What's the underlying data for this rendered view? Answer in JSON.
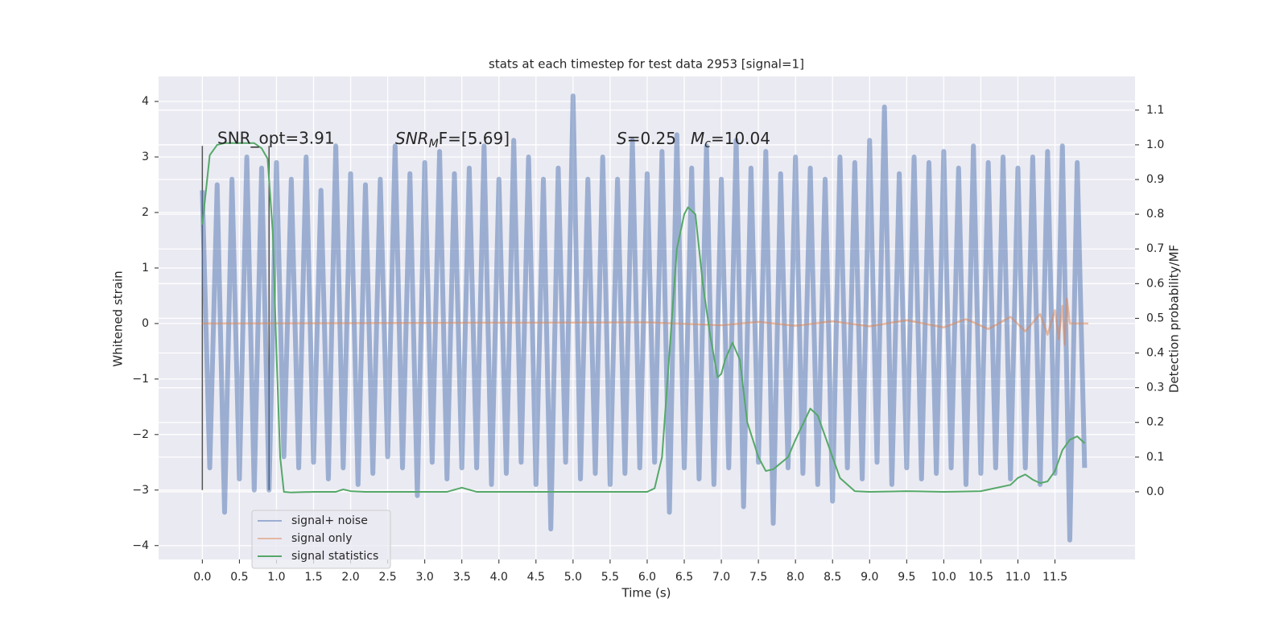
{
  "chart_data": {
    "type": "line",
    "title": "stats at each timestep for test data 2953 [signal=1]",
    "xlabel": "Time (s)",
    "ylabel": "Whitened strain",
    "y2label": "Detection probability/MF",
    "annotations": {
      "snr_opt": "SNR_opt=3.91",
      "snr_mf": {
        "base": "SNR",
        "sub": "M",
        "rest": "F=[5.69]"
      },
      "s": {
        "base": "S",
        "rest": "=0.25"
      },
      "mc": {
        "base": "M",
        "sub": "c",
        "rest": "=10.04"
      }
    },
    "xlim": [
      -0.59,
      12.58
    ],
    "ylim": [
      -4.25,
      4.45
    ],
    "y2lim": [
      -0.195,
      1.197
    ],
    "xticks": [
      {
        "value": 0,
        "label": "0.0"
      },
      0.5,
      {
        "value": 1,
        "label": "1.0"
      },
      1.5,
      {
        "value": 2,
        "label": "2.0"
      },
      2.5,
      {
        "value": 3,
        "label": "3.0"
      },
      3.5,
      {
        "value": 4,
        "label": "4.0"
      },
      4.5,
      {
        "value": 5,
        "label": "5.0"
      },
      5.5,
      {
        "value": 6,
        "label": "6.0"
      },
      6.5,
      {
        "value": 7,
        "label": "7.0"
      },
      7.5,
      {
        "value": 8,
        "label": "8.0"
      },
      8.5,
      {
        "value": 9,
        "label": "9.0"
      },
      9.5,
      {
        "value": 10,
        "label": "10.0"
      },
      10.5,
      {
        "value": 11,
        "label": "11.0"
      },
      11.5
    ],
    "yticks": [
      {
        "value": -4,
        "label": "−4"
      },
      {
        "value": -3,
        "label": "−3"
      },
      {
        "value": -2,
        "label": "−2"
      },
      {
        "value": -1,
        "label": "−1"
      },
      0,
      1,
      2,
      3,
      4
    ],
    "y2ticks": [
      {
        "value": 0,
        "label": "0.0"
      },
      0.1,
      0.2,
      0.3,
      0.4,
      0.5,
      0.6,
      0.7,
      0.8,
      0.9,
      {
        "value": 1,
        "label": "1.0"
      },
      1.1
    ],
    "grid": true,
    "legend": "lower left",
    "vlines": [
      {
        "x": 0,
        "ymin": -3,
        "ymax": 3.2
      },
      {
        "x": 0.9,
        "ymin": -3,
        "ymax": 3.2
      }
    ],
    "series": [
      {
        "name": "signal+ noise",
        "color": "#4c72b0",
        "x": [
          0.0,
          0.1,
          0.2,
          0.3,
          0.4,
          0.5,
          0.6,
          0.7,
          0.8,
          0.9,
          1.0,
          1.1,
          1.2,
          1.3,
          1.4,
          1.5,
          1.6,
          1.7,
          1.8,
          1.9,
          2.0,
          2.1,
          2.2,
          2.3,
          2.4,
          2.5,
          2.6,
          2.7,
          2.8,
          2.9,
          3.0,
          3.1,
          3.2,
          3.3,
          3.4,
          3.5,
          3.6,
          3.7,
          3.8,
          3.9,
          4.0,
          4.1,
          4.2,
          4.3,
          4.4,
          4.5,
          4.6,
          4.7,
          4.8,
          4.9,
          5.0,
          5.1,
          5.2,
          5.3,
          5.4,
          5.5,
          5.6,
          5.7,
          5.8,
          5.9,
          6.0,
          6.1,
          6.2,
          6.3,
          6.4,
          6.5,
          6.6,
          6.7,
          6.8,
          6.9,
          7.0,
          7.1,
          7.2,
          7.3,
          7.4,
          7.5,
          7.6,
          7.7,
          7.8,
          7.9,
          8.0,
          8.1,
          8.2,
          8.3,
          8.4,
          8.5,
          8.6,
          8.7,
          8.8,
          8.9,
          9.0,
          9.1,
          9.2,
          9.3,
          9.4,
          9.5,
          9.6,
          9.7,
          9.8,
          9.9,
          10.0,
          10.1,
          10.2,
          10.3,
          10.4,
          10.5,
          10.6,
          10.7,
          10.8,
          10.9,
          11.0,
          11.1,
          11.2,
          11.3,
          11.4,
          11.5,
          11.6,
          11.7,
          11.8,
          11.9
        ],
        "values": [
          2.4,
          -2.6,
          2.5,
          -3.4,
          2.6,
          -2.8,
          3.0,
          -3.0,
          2.8,
          -3.0,
          2.9,
          -2.4,
          2.6,
          -2.6,
          3.0,
          -2.5,
          2.4,
          -2.8,
          3.2,
          -2.6,
          2.7,
          -2.9,
          2.5,
          -2.7,
          2.6,
          -2.4,
          3.2,
          -2.6,
          2.7,
          -3.1,
          2.9,
          -2.5,
          3.1,
          -2.8,
          2.7,
          -2.6,
          2.8,
          -2.6,
          3.2,
          -2.9,
          2.6,
          -2.7,
          3.3,
          -2.5,
          3.0,
          -2.9,
          2.6,
          -3.7,
          2.8,
          -2.5,
          4.1,
          -2.8,
          2.6,
          -2.7,
          3.0,
          -2.9,
          2.6,
          -2.7,
          3.3,
          -2.6,
          2.7,
          -2.5,
          3.1,
          -3.4,
          3.4,
          -2.6,
          2.8,
          -2.8,
          3.2,
          -2.9,
          2.6,
          -2.6,
          3.3,
          -3.3,
          2.8,
          -2.5,
          3.1,
          -3.6,
          2.7,
          -2.6,
          3.0,
          -2.7,
          2.8,
          -2.9,
          2.6,
          -3.2,
          3.0,
          -2.6,
          2.9,
          -2.8,
          3.3,
          -2.5,
          3.9,
          -2.9,
          2.7,
          -2.6,
          3.0,
          -2.8,
          2.9,
          -2.7,
          3.1,
          -2.6,
          2.8,
          -2.9,
          3.2,
          -2.7,
          2.9,
          -2.6,
          3.0,
          -2.8,
          2.8,
          -2.6,
          3.0,
          -2.9,
          3.1,
          -2.7,
          3.2,
          -3.9,
          2.9,
          -2.6
        ]
      },
      {
        "name": "signal only",
        "color": "#dd8452",
        "x": [
          0,
          6.0,
          7.0,
          7.5,
          8.0,
          8.5,
          9.0,
          9.5,
          10.0,
          10.3,
          10.6,
          10.9,
          11.1,
          11.3,
          11.4,
          11.5,
          11.55,
          11.6,
          11.63,
          11.66,
          11.7,
          11.95
        ],
        "values": [
          0,
          0.02,
          -0.03,
          0.03,
          -0.04,
          0.04,
          -0.05,
          0.06,
          -0.07,
          0.08,
          -0.1,
          0.12,
          -0.14,
          0.17,
          -0.2,
          0.24,
          -0.28,
          0.32,
          -0.38,
          0.45,
          0,
          0
        ]
      },
      {
        "name": "signal statistics",
        "color": "#55a868",
        "axis": "y2",
        "x": [
          0.0,
          0.1,
          0.2,
          0.3,
          0.5,
          0.7,
          0.8,
          0.88,
          0.95,
          1.0,
          1.05,
          1.1,
          1.2,
          1.5,
          1.8,
          1.9,
          2.0,
          2.2,
          3.3,
          3.5,
          3.7,
          6.0,
          6.1,
          6.2,
          6.3,
          6.4,
          6.5,
          6.55,
          6.65,
          6.75,
          6.85,
          6.95,
          7.0,
          7.05,
          7.15,
          7.25,
          7.35,
          7.5,
          7.6,
          7.7,
          7.9,
          8.0,
          8.2,
          8.3,
          8.5,
          8.6,
          8.8,
          9.0,
          9.5,
          10.0,
          10.5,
          10.9,
          11.0,
          11.1,
          11.2,
          11.3,
          11.4,
          11.5,
          11.6,
          11.7,
          11.8,
          11.9
        ],
        "values": [
          0.77,
          0.97,
          1.0,
          1.005,
          1.005,
          1.005,
          0.99,
          0.96,
          0.75,
          0.4,
          0.1,
          0.0,
          -0.002,
          0,
          0,
          0.007,
          0.002,
          0,
          0,
          0.012,
          0,
          0,
          0.01,
          0.1,
          0.4,
          0.7,
          0.8,
          0.82,
          0.8,
          0.6,
          0.45,
          0.33,
          0.34,
          0.38,
          0.43,
          0.38,
          0.2,
          0.1,
          0.06,
          0.065,
          0.1,
          0.15,
          0.24,
          0.22,
          0.1,
          0.04,
          0.002,
          0,
          0.002,
          0,
          0.002,
          0.02,
          0.04,
          0.05,
          0.035,
          0.025,
          0.03,
          0.06,
          0.12,
          0.15,
          0.16,
          0.14
        ]
      }
    ]
  }
}
